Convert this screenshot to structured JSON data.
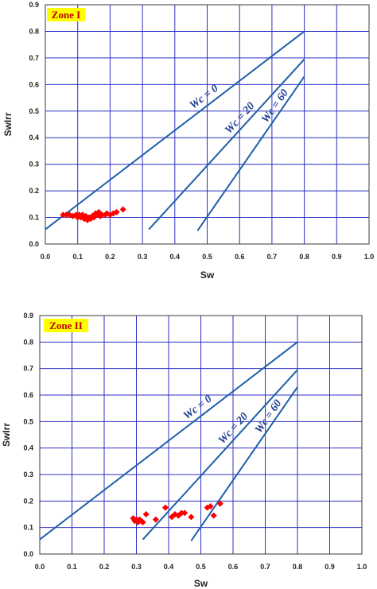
{
  "chart_data": [
    {
      "type": "scatter",
      "zone_label": "Zone I",
      "xlabel": "Sw",
      "ylabel": "SwIrr",
      "xlim": [
        0,
        1
      ],
      "ylim": [
        0,
        0.9
      ],
      "x_ticks": [
        "0.0",
        "0.1",
        "0.2",
        "0.3",
        "0.4",
        "0.5",
        "0.6",
        "0.7",
        "0.8",
        "0.9",
        "1.0"
      ],
      "y_ticks": [
        "0.0",
        "0.1",
        "0.2",
        "0.3",
        "0.4",
        "0.5",
        "0.6",
        "0.7",
        "0.8",
        "0.9"
      ],
      "grid": true,
      "colors": {
        "grid": "#2d2fc4",
        "lines": "#1f5faa",
        "points": "#ff0000",
        "zone_bg": "#ffff00"
      },
      "reference_lines": [
        {
          "label": "Wc = 0",
          "points": [
            [
              0.0,
              0.055
            ],
            [
              0.8,
              0.8
            ]
          ]
        },
        {
          "label": "Wc = 20",
          "points": [
            [
              0.32,
              0.055
            ],
            [
              0.8,
              0.695
            ]
          ]
        },
        {
          "label": "Wc = 60",
          "points": [
            [
              0.47,
              0.05
            ],
            [
              0.8,
              0.63
            ]
          ]
        }
      ],
      "points": [
        [
          0.055,
          0.11
        ],
        [
          0.065,
          0.11
        ],
        [
          0.075,
          0.11
        ],
        [
          0.085,
          0.105
        ],
        [
          0.095,
          0.11
        ],
        [
          0.1,
          0.1
        ],
        [
          0.105,
          0.11
        ],
        [
          0.11,
          0.1
        ],
        [
          0.115,
          0.11
        ],
        [
          0.12,
          0.095
        ],
        [
          0.125,
          0.105
        ],
        [
          0.13,
          0.09
        ],
        [
          0.135,
          0.1
        ],
        [
          0.14,
          0.095
        ],
        [
          0.145,
          0.105
        ],
        [
          0.15,
          0.1
        ],
        [
          0.155,
          0.115
        ],
        [
          0.16,
          0.11
        ],
        [
          0.165,
          0.12
        ],
        [
          0.17,
          0.105
        ],
        [
          0.175,
          0.11
        ],
        [
          0.185,
          0.11
        ],
        [
          0.19,
          0.115
        ],
        [
          0.2,
          0.11
        ],
        [
          0.21,
          0.115
        ],
        [
          0.22,
          0.12
        ],
        [
          0.24,
          0.13
        ]
      ]
    },
    {
      "type": "scatter",
      "zone_label": "Zone II",
      "xlabel": "Sw",
      "ylabel": "SwIrr",
      "xlim": [
        0,
        1
      ],
      "ylim": [
        0,
        0.9
      ],
      "x_ticks": [
        "0.0",
        "0.1",
        "0.2",
        "0.3",
        "0.4",
        "0.5",
        "0.6",
        "0.7",
        "0.8",
        "0.9",
        "1.0"
      ],
      "y_ticks": [
        "0.0",
        "0.1",
        "0.2",
        "0.3",
        "0.4",
        "0.5",
        "0.6",
        "0.7",
        "0.8",
        "0.9"
      ],
      "grid": true,
      "colors": {
        "grid": "#2d2fc4",
        "lines": "#1f5faa",
        "points": "#ff0000",
        "zone_bg": "#ffff00"
      },
      "reference_lines": [
        {
          "label": "Wc = 0",
          "points": [
            [
              0.0,
              0.055
            ],
            [
              0.8,
              0.8
            ]
          ]
        },
        {
          "label": "Wc = 20",
          "points": [
            [
              0.32,
              0.055
            ],
            [
              0.8,
              0.695
            ]
          ]
        },
        {
          "label": "Wc = 60",
          "points": [
            [
              0.47,
              0.05
            ],
            [
              0.8,
              0.63
            ]
          ]
        }
      ],
      "points": [
        [
          0.29,
          0.135
        ],
        [
          0.295,
          0.125
        ],
        [
          0.3,
          0.13
        ],
        [
          0.305,
          0.12
        ],
        [
          0.31,
          0.13
        ],
        [
          0.315,
          0.125
        ],
        [
          0.32,
          0.12
        ],
        [
          0.33,
          0.15
        ],
        [
          0.36,
          0.13
        ],
        [
          0.39,
          0.175
        ],
        [
          0.41,
          0.14
        ],
        [
          0.42,
          0.15
        ],
        [
          0.43,
          0.145
        ],
        [
          0.44,
          0.155
        ],
        [
          0.45,
          0.155
        ],
        [
          0.47,
          0.14
        ],
        [
          0.52,
          0.175
        ],
        [
          0.53,
          0.18
        ],
        [
          0.54,
          0.145
        ],
        [
          0.56,
          0.19
        ]
      ]
    }
  ]
}
